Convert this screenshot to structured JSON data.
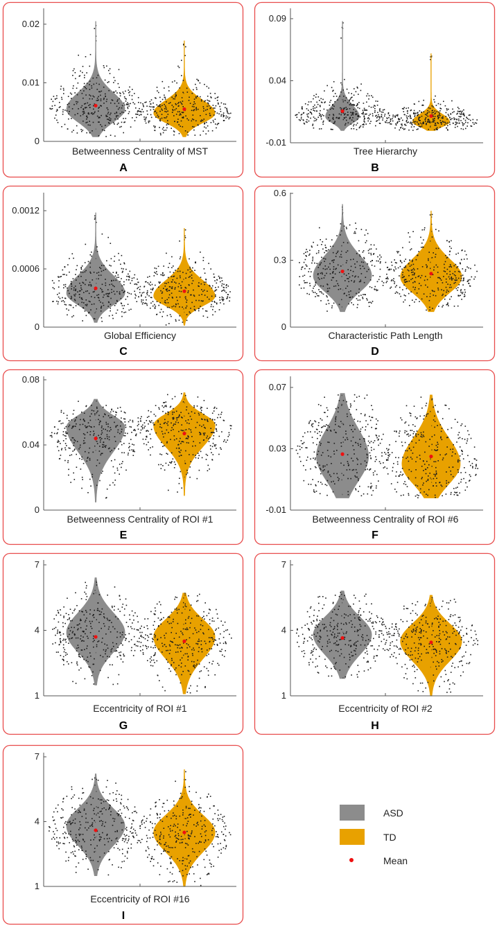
{
  "legend": {
    "items": [
      {
        "label": "ASD",
        "color": "#8c8c8c",
        "kind": "patch"
      },
      {
        "label": "TD",
        "color": "#e8a100",
        "kind": "patch"
      },
      {
        "label": "Mean",
        "color": "#ee1111",
        "kind": "dot"
      }
    ]
  },
  "colors": {
    "asd": "#8c8c8c",
    "td": "#e8a100",
    "mean": "#ee1111",
    "border": "#e84a4a",
    "dots": "#1a1a1a"
  },
  "chart_data": [
    {
      "id": "A",
      "letter": "A",
      "type": "violin",
      "xlabel": "Betweenness Centrality of MST",
      "ylim": [
        0,
        0.022
      ],
      "yticks": [
        0,
        0.01,
        0.02
      ],
      "ytick_labels": [
        "0",
        "0.01",
        "0.02"
      ],
      "series": [
        {
          "name": "ASD",
          "min": 0.0008,
          "max": 0.0205,
          "mode": 0.0055,
          "width": 0.95,
          "low_spread": 0.0022,
          "high_spread": 0.0028,
          "mean": 0.0061,
          "n": 330
        },
        {
          "name": "TD",
          "min": 0.0008,
          "max": 0.0172,
          "mode": 0.0048,
          "width": 1.0,
          "low_spread": 0.0016,
          "high_spread": 0.0022,
          "mean": 0.0055,
          "n": 330
        }
      ]
    },
    {
      "id": "B",
      "letter": "B",
      "type": "violin",
      "xlabel": "Tree Hierarchy",
      "ylim": [
        -0.01,
        0.095
      ],
      "yticks": [
        -0.01,
        0.04,
        0.09
      ],
      "ytick_labels": [
        "-0.01",
        "0.04",
        "0.09"
      ],
      "series": [
        {
          "name": "ASD",
          "min": 0.0,
          "max": 0.088,
          "mode": 0.011,
          "width": 0.55,
          "low_spread": 0.005,
          "high_spread": 0.009,
          "mean": 0.0155,
          "n": 330
        },
        {
          "name": "TD",
          "min": 0.0,
          "max": 0.062,
          "mode": 0.007,
          "width": 0.6,
          "low_spread": 0.004,
          "high_spread": 0.006,
          "mean": 0.0115,
          "n": 330
        }
      ]
    },
    {
      "id": "C",
      "letter": "C",
      "type": "violin",
      "xlabel": "Global Efficiency",
      "ylim": [
        0,
        0.0013
      ],
      "yticks": [
        0,
        0.0006,
        0.0012
      ],
      "ytick_labels": [
        "0",
        "0.0006",
        "0.0012"
      ],
      "series": [
        {
          "name": "ASD",
          "min": 5e-05,
          "max": 0.00118,
          "mode": 0.00035,
          "width": 0.95,
          "low_spread": 0.00012,
          "high_spread": 0.00018,
          "mean": 0.0004,
          "n": 330
        },
        {
          "name": "TD",
          "min": 2e-05,
          "max": 0.00102,
          "mode": 0.00032,
          "width": 1.0,
          "low_spread": 0.0001,
          "high_spread": 0.00016,
          "mean": 0.00037,
          "n": 330
        }
      ]
    },
    {
      "id": "D",
      "letter": "D",
      "type": "violin",
      "xlabel": "Characteristic Path Length",
      "ylim": [
        0,
        0.6
      ],
      "yticks": [
        0,
        0.3,
        0.6
      ],
      "ytick_labels": [
        "0",
        "0.3",
        "0.6"
      ],
      "series": [
        {
          "name": "ASD",
          "min": 0.07,
          "max": 0.55,
          "mode": 0.23,
          "width": 0.95,
          "low_spread": 0.07,
          "high_spread": 0.09,
          "mean": 0.25,
          "n": 330
        },
        {
          "name": "TD",
          "min": 0.07,
          "max": 0.52,
          "mode": 0.225,
          "width": 1.0,
          "low_spread": 0.07,
          "high_spread": 0.08,
          "mean": 0.24,
          "n": 330
        }
      ]
    },
    {
      "id": "E",
      "letter": "E",
      "type": "violin",
      "xlabel": "Betweenness Centrality of ROI #1",
      "ylim": [
        0,
        0.08
      ],
      "yticks": [
        0,
        0.04,
        0.08
      ],
      "ytick_labels": [
        "0",
        "0.04",
        "0.08"
      ],
      "series": [
        {
          "name": "ASD",
          "min": 0.005,
          "max": 0.068,
          "mode": 0.051,
          "width": 0.95,
          "low_spread": 0.015,
          "high_spread": 0.007,
          "mean": 0.044,
          "n": 330
        },
        {
          "name": "TD",
          "min": 0.009,
          "max": 0.072,
          "mode": 0.052,
          "width": 1.0,
          "low_spread": 0.013,
          "high_spread": 0.007,
          "mean": 0.047,
          "n": 330
        }
      ]
    },
    {
      "id": "F",
      "letter": "F",
      "type": "violin",
      "xlabel": "Betweenness Centrality of ROI #6",
      "ylim": [
        -0.01,
        0.07
      ],
      "yticks": [
        -0.01,
        0.03,
        0.07
      ],
      "ytick_labels": [
        "-0.01",
        "0.03",
        "0.07"
      ],
      "series": [
        {
          "name": "ASD",
          "min": -0.002,
          "max": 0.066,
          "mode": 0.025,
          "width": 0.85,
          "low_spread": 0.016,
          "high_spread": 0.018,
          "mean": 0.0265,
          "n": 330
        },
        {
          "name": "TD",
          "min": -0.002,
          "max": 0.065,
          "mode": 0.02,
          "width": 0.95,
          "low_spread": 0.013,
          "high_spread": 0.017,
          "mean": 0.025,
          "n": 330
        }
      ]
    },
    {
      "id": "G",
      "letter": "G",
      "type": "violin",
      "xlabel": "Eccentricity of ROI #1",
      "ylim": [
        1,
        7
      ],
      "yticks": [
        1,
        4,
        7
      ],
      "ytick_labels": [
        "1",
        "4",
        "7"
      ],
      "series": [
        {
          "name": "ASD",
          "min": 1.5,
          "max": 6.4,
          "mode": 3.9,
          "width": 0.95,
          "low_spread": 0.9,
          "high_spread": 0.9,
          "mean": 3.7,
          "n": 330
        },
        {
          "name": "TD",
          "min": 1.1,
          "max": 5.7,
          "mode": 3.7,
          "width": 1.0,
          "low_spread": 1.0,
          "high_spread": 0.8,
          "mean": 3.5,
          "n": 330
        }
      ]
    },
    {
      "id": "H",
      "letter": "H",
      "type": "violin",
      "xlabel": "Eccentricity of ROI #2",
      "ylim": [
        1,
        7
      ],
      "yticks": [
        1,
        4,
        7
      ],
      "ytick_labels": [
        "1",
        "4",
        "7"
      ],
      "series": [
        {
          "name": "ASD",
          "min": 1.8,
          "max": 5.8,
          "mode": 3.8,
          "width": 0.95,
          "low_spread": 0.9,
          "high_spread": 0.8,
          "mean": 3.65,
          "n": 330
        },
        {
          "name": "TD",
          "min": 1.0,
          "max": 5.6,
          "mode": 3.5,
          "width": 1.0,
          "low_spread": 0.9,
          "high_spread": 0.8,
          "mean": 3.45,
          "n": 330
        }
      ]
    },
    {
      "id": "I",
      "letter": "I",
      "type": "violin",
      "xlabel": "Eccentricity of ROI #16",
      "ylim": [
        1,
        7
      ],
      "yticks": [
        1,
        4,
        7
      ],
      "ytick_labels": [
        "1",
        "4",
        "7"
      ],
      "series": [
        {
          "name": "ASD",
          "min": 1.5,
          "max": 6.2,
          "mode": 3.8,
          "width": 0.95,
          "low_spread": 0.9,
          "high_spread": 0.8,
          "mean": 3.6,
          "n": 330
        },
        {
          "name": "TD",
          "min": 1.0,
          "max": 6.4,
          "mode": 3.5,
          "width": 1.0,
          "low_spread": 0.9,
          "high_spread": 0.8,
          "mean": 3.5,
          "n": 330
        }
      ]
    }
  ]
}
